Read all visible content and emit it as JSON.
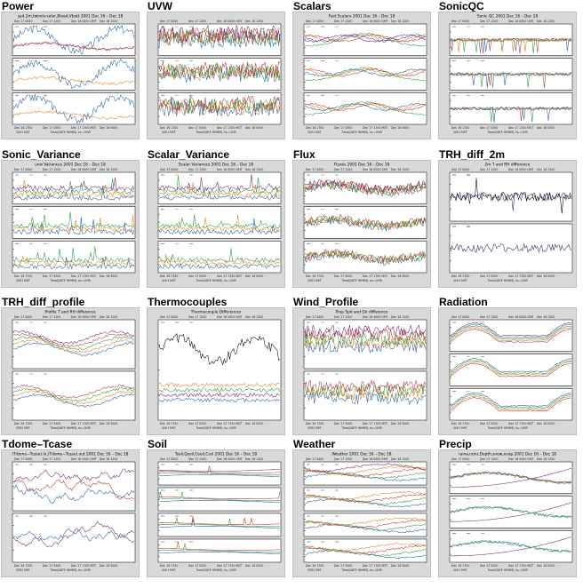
{
  "panels": [
    {
      "title": "Power",
      "plot_title": "spd.2m,twind+solar,Bload,Vbatt 2001 Dec 16 – Dec 18",
      "subplots": 3,
      "series": [
        "#1f5fa8",
        "#e08020",
        "#7a2070"
      ],
      "style": "power"
    },
    {
      "title": "UVW",
      "plot_title": "",
      "subplots": 3,
      "series": [
        "#1f5fa8",
        "#e08020",
        "#2a9a3a",
        "#c03030",
        "#7a2070"
      ],
      "style": "noisy"
    },
    {
      "title": "Scalars",
      "plot_title": "Fast Scalars 2001 Dec 16 – Dec 18",
      "subplots": 3,
      "series": [
        "#2a9a3a",
        "#c03030",
        "#e08020",
        "#1f5fa8",
        "#7a2070"
      ],
      "style": "scalars"
    },
    {
      "title": "SonicQC",
      "plot_title": "Sonic QC 2001 Dec 16 – Dec 18",
      "subplots": 3,
      "series": [
        "#1f5fa8",
        "#2a9a3a",
        "#c03030",
        "#e08020"
      ],
      "style": "qc"
    },
    {
      "title": "Sonic_Variance",
      "plot_title": "uvw Variances 2001 Dec 16 – Dec 18",
      "subplots": 3,
      "series": [
        "#1f5fa8",
        "#e08020",
        "#2a9a3a",
        "#7a2070"
      ],
      "style": "spiky"
    },
    {
      "title": "Scalar_Variance",
      "plot_title": "Scalar Variances 2001 Dec 16 – Dec 18",
      "subplots": 3,
      "series": [
        "#1f5fa8",
        "#e08020",
        "#2a9a3a",
        "#7a2070"
      ],
      "style": "spiky"
    },
    {
      "title": "Flux",
      "plot_title": "Fluxes 2001 Dec 16 – Dec 18",
      "subplots": 3,
      "series": [
        "#1f5fa8",
        "#e08020",
        "#2a9a3a",
        "#c03030",
        "#7a2070"
      ],
      "style": "flux"
    },
    {
      "title": "TRH_diff_2m",
      "plot_title": "2m T and RH difference",
      "subplots": 2,
      "series": [
        "#1f2f5a",
        "#000000"
      ],
      "style": "diff"
    },
    {
      "title": "TRH_diff_profile",
      "plot_title": "Profile T and RH difference",
      "subplots": 2,
      "series": [
        "#1f5fa8",
        "#e08020",
        "#2a9a3a",
        "#c03030",
        "#7a2070"
      ],
      "style": "profile"
    },
    {
      "title": "Thermocouples",
      "plot_title": "Thermocouple Differences",
      "subplots": 1,
      "series": [
        "#1f5fa8",
        "#7a2070",
        "#2a9a3a",
        "#e08020",
        "#000000"
      ],
      "style": "thermo"
    },
    {
      "title": "Wind_Profile",
      "plot_title": "Prop Spd and Dir difference",
      "subplots": 2,
      "series": [
        "#1f5fa8",
        "#e08020",
        "#2a9a3a",
        "#c03030",
        "#7a2070"
      ],
      "style": "wind"
    },
    {
      "title": "Radiation",
      "plot_title": "",
      "subplots": 3,
      "series": [
        "#c03030",
        "#e08020",
        "#2a9a3a",
        "#1f5fa8",
        "#7a2070"
      ],
      "style": "radiation"
    },
    {
      "title": "Tdome–Tcase",
      "plot_title": "(Tdome−Tcase).in,(Tdome−Tcase).out 2001 Dec 16 – Dec 18",
      "subplots": 2,
      "series": [
        "#1f5fa8",
        "#7a2070",
        "#c03030"
      ],
      "style": "tdome"
    },
    {
      "title": "Soil",
      "plot_title": "Tsoil,Qsoil,Gsoil,Cvsl 2001 Dec 16 – Dec 18",
      "subplots": 4,
      "series": [
        "#1f5fa8",
        "#2a9a3a",
        "#c03030",
        "#7a2070"
      ],
      "style": "soil"
    },
    {
      "title": "Weather",
      "plot_title": "Weather 2001 Dec 16 – Dec 18",
      "subplots": 4,
      "series": [
        "#1f5fa8",
        "#2a9a3a",
        "#c03030",
        "#e08020",
        "#7a2070"
      ],
      "style": "weather"
    },
    {
      "title": "Precip",
      "plot_title": "raina,rainr,Depth.snow,evap 2001 Dec 16 – Dec 18",
      "subplots": 3,
      "series": [
        "#7a2070",
        "#1f5fa8",
        "#2a9a3a",
        "#c03030"
      ],
      "style": "precip"
    }
  ],
  "axis_text": {
    "top_ticks": [
      "Dec 17 0000",
      "Dec 17 1200",
      "Dec 18 0000 GMT",
      "Dec 18 1200"
    ],
    "bottom_ticks": [
      "Dec 16 1700",
      "Dec 17 0500",
      "Dec 17 1700 MST",
      "Dec 18 0500"
    ],
    "xlabel": "Time(DATE HHMM), to.=2HR",
    "year_label": "2001 MST"
  },
  "colors": {
    "thumb_bg": "#d9d9d9",
    "plot_bg": "#ffffff",
    "axis": "#000000"
  }
}
